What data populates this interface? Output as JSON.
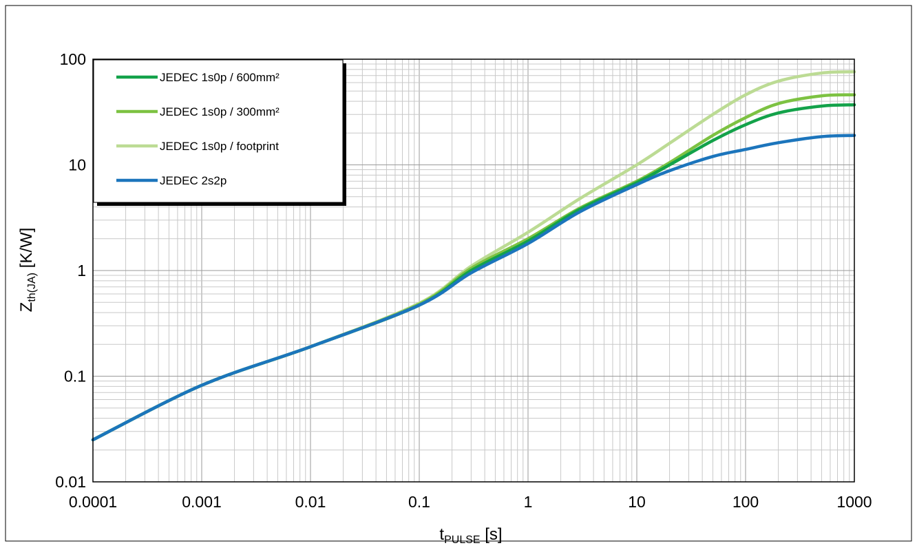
{
  "chart_data": {
    "type": "line",
    "xscale": "log",
    "yscale": "log",
    "xlim": [
      0.0001,
      1000
    ],
    "ylim": [
      0.01,
      100
    ],
    "grid": true,
    "legend_position": "top-left",
    "xlabel": {
      "main": "t",
      "sub": "PULSE",
      "unit": " [s]"
    },
    "ylabel": {
      "main": "Z",
      "sub": "th(JA)",
      "unit": " [K/W]"
    },
    "x_ticks": [
      "0.0001",
      "0.001",
      "0.01",
      "0.1",
      "1",
      "10",
      "100",
      "1000"
    ],
    "y_ticks": [
      "0.01",
      "0.1",
      "1",
      "10",
      "100"
    ],
    "series": [
      {
        "name": "JEDEC 1s0p / 600mm²",
        "color": "#13A24A",
        "x": [
          0.0001,
          0.001,
          0.01,
          0.1,
          0.3,
          1,
          3,
          10,
          20,
          50,
          100,
          200,
          500,
          1000
        ],
        "y": [
          0.025,
          0.082,
          0.19,
          0.47,
          1.0,
          1.9,
          3.8,
          6.8,
          10.0,
          17.0,
          24.0,
          31.0,
          36.0,
          37.0
        ]
      },
      {
        "name": "JEDEC 1s0p / 300mm²",
        "color": "#7DC242",
        "x": [
          0.0001,
          0.001,
          0.01,
          0.1,
          0.3,
          1,
          3,
          10,
          20,
          50,
          100,
          200,
          500,
          1000
        ],
        "y": [
          0.025,
          0.082,
          0.19,
          0.48,
          1.05,
          2.0,
          3.9,
          7.0,
          10.5,
          19.0,
          28.0,
          38.0,
          45.0,
          46.0
        ]
      },
      {
        "name": "JEDEC 1s0p / footprint",
        "color": "#BCDB94",
        "x": [
          0.0001,
          0.001,
          0.01,
          0.1,
          0.3,
          1,
          3,
          10,
          20,
          50,
          100,
          200,
          500,
          1000
        ],
        "y": [
          0.025,
          0.082,
          0.19,
          0.49,
          1.1,
          2.3,
          4.8,
          10.0,
          16.0,
          30.0,
          46.0,
          62.0,
          74.0,
          76.0
        ]
      },
      {
        "name": "JEDEC 2s2p",
        "color": "#1C75BC",
        "x": [
          0.0001,
          0.001,
          0.01,
          0.1,
          0.3,
          1,
          3,
          10,
          20,
          50,
          100,
          200,
          500,
          1000
        ],
        "y": [
          0.025,
          0.082,
          0.19,
          0.47,
          0.95,
          1.8,
          3.6,
          6.5,
          8.8,
          12.0,
          14.0,
          16.2,
          18.5,
          19.0
        ]
      }
    ]
  }
}
